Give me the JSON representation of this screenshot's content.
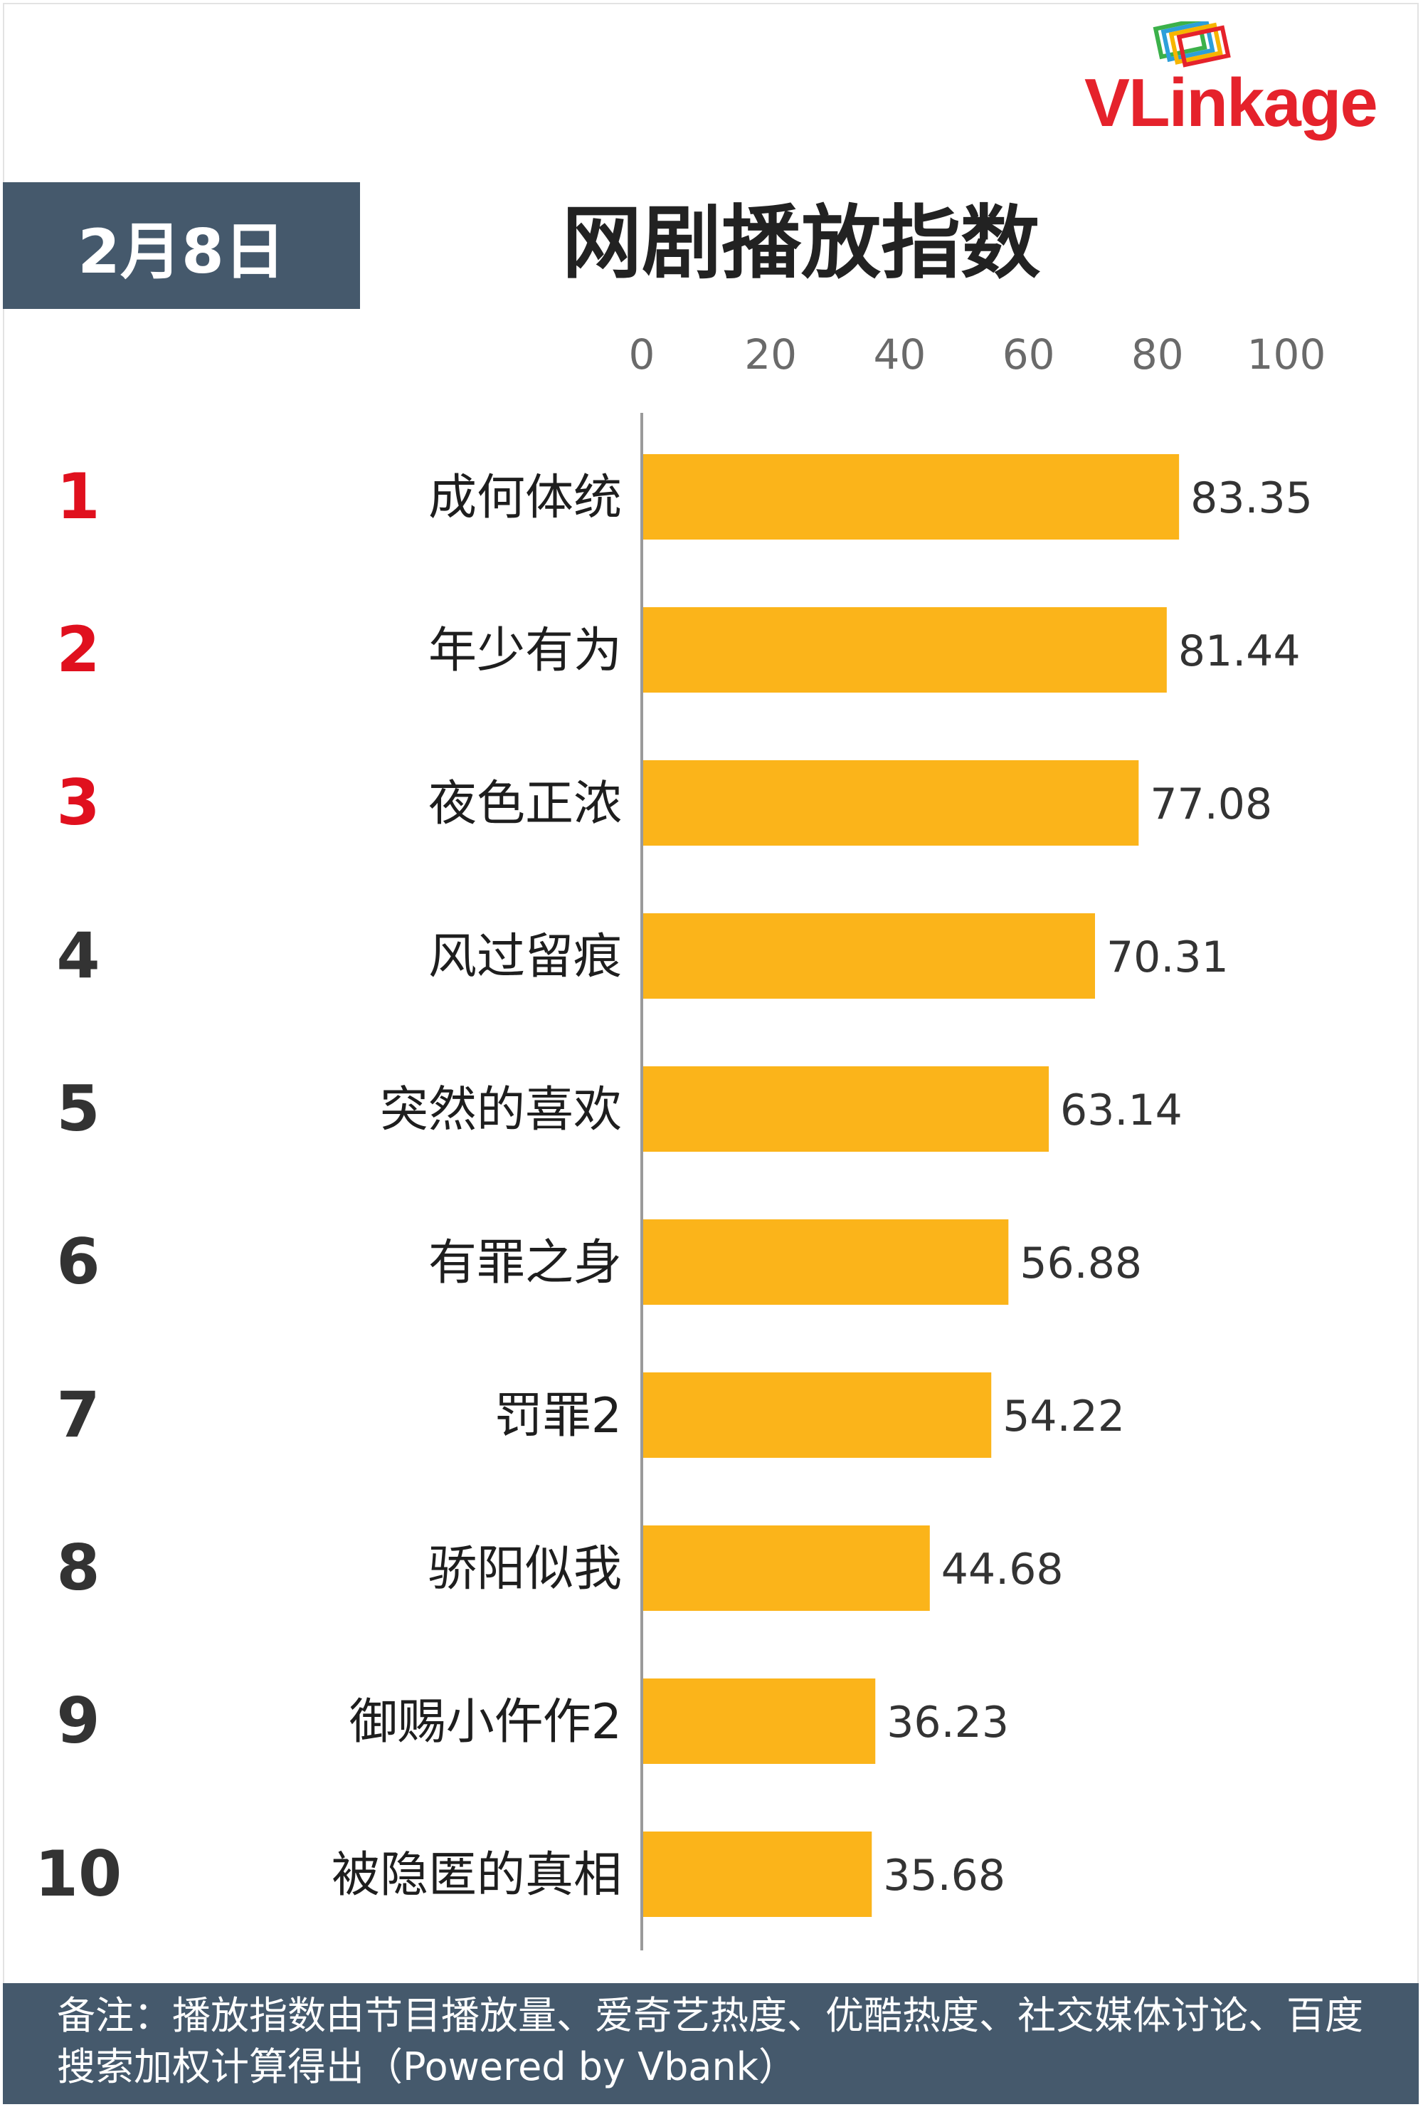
{
  "date_label": "2月8日",
  "title": "网剧播放指数",
  "logo": {
    "text": "VLinkage"
  },
  "footer_note": "备注：播放指数由节目播放量、爱奇艺热度、优酷热度、社交媒体讨论、百度搜索加权计算得出（Powered by Vbank）",
  "colors": {
    "bar": "#fbb41a",
    "top_rank": "#e0101e",
    "rank": "#333333",
    "header_bg": "#45596c"
  },
  "chart_data": {
    "type": "bar",
    "orientation": "horizontal",
    "title": "网剧播放指数",
    "xlim": [
      0,
      100
    ],
    "x_ticks": [
      "0",
      "20",
      "40",
      "60",
      "80",
      "100"
    ],
    "ranks": [
      "1",
      "2",
      "3",
      "4",
      "5",
      "6",
      "7",
      "8",
      "9",
      "10"
    ],
    "categories": [
      "成何体统",
      "年少有为",
      "夜色正浓",
      "风过留痕",
      "突然的喜欢",
      "有罪之身",
      "罚罪2",
      "骄阳似我",
      "御赐小仵作2",
      "被隐匿的真相"
    ],
    "values": [
      83.35,
      81.44,
      77.08,
      70.31,
      63.14,
      56.88,
      54.22,
      44.68,
      36.23,
      35.68
    ],
    "value_labels": [
      "83.35",
      "81.44",
      "77.08",
      "70.31",
      "63.14",
      "56.88",
      "54.22",
      "44.68",
      "36.23",
      "35.68"
    ],
    "grid": false,
    "legend": "none"
  }
}
